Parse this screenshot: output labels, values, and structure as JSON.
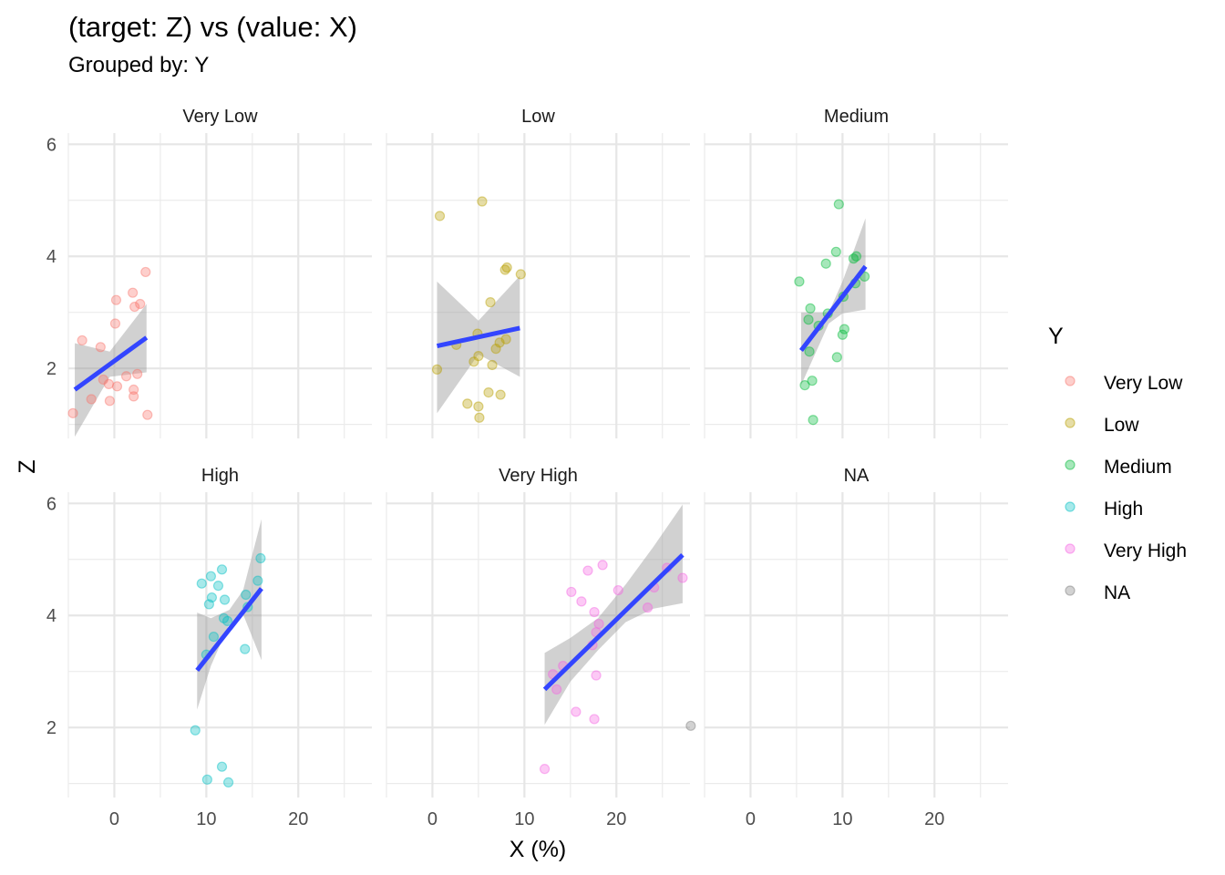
{
  "title": "(target: Z) vs (value: X)",
  "subtitle": "Grouped by: Y",
  "chart_data": {
    "type": "scatter",
    "xlabel": "X (%)",
    "ylabel": "Z",
    "xlim": [
      -5,
      28
    ],
    "ylim": [
      0.75,
      6.2
    ],
    "xticks": [
      0,
      10,
      20
    ],
    "yticks": [
      2,
      4,
      6
    ],
    "grid": true,
    "legend": {
      "title": "Y",
      "position": "right",
      "entries": [
        "Very Low",
        "Low",
        "Medium",
        "High",
        "Very High",
        "NA"
      ]
    },
    "colors": {
      "Very Low": "#F8766D",
      "Low": "#B79F00",
      "Medium": "#00BA38",
      "High": "#00BFC4",
      "Very High": "#F564E3",
      "NA": "#7F7F7F"
    },
    "panels": [
      {
        "name": "Very Low",
        "points": [
          [
            -4.5,
            1.2
          ],
          [
            -3.5,
            2.5
          ],
          [
            -2.5,
            1.45
          ],
          [
            -1.5,
            2.38
          ],
          [
            -1.2,
            1.8
          ],
          [
            -0.6,
            1.72
          ],
          [
            -0.5,
            1.42
          ],
          [
            0.1,
            2.8
          ],
          [
            0.2,
            3.22
          ],
          [
            0.3,
            1.68
          ],
          [
            1.3,
            1.86
          ],
          [
            2,
            3.35
          ],
          [
            2.1,
            1.62
          ],
          [
            2.1,
            1.5
          ],
          [
            2.2,
            3.1
          ],
          [
            2.5,
            1.9
          ],
          [
            2.8,
            3.15
          ],
          [
            3.4,
            3.72
          ],
          [
            3.6,
            1.17
          ]
        ],
        "fit": {
          "x": [
            -4.3,
            3.5
          ],
          "y": [
            1.62,
            2.55
          ]
        },
        "band": {
          "x": [
            -4.3,
            -0.5,
            3.5
          ],
          "lower": [
            0.78,
            1.85,
            1.93
          ],
          "upper": [
            2.45,
            2.3,
            3.15
          ]
        }
      },
      {
        "name": "Low",
        "points": [
          [
            0.5,
            1.98
          ],
          [
            0.8,
            4.72
          ],
          [
            2.6,
            2.42
          ],
          [
            3.8,
            1.37
          ],
          [
            4.5,
            2.12
          ],
          [
            4.9,
            2.62
          ],
          [
            5,
            2.22
          ],
          [
            5,
            1.32
          ],
          [
            5.1,
            1.12
          ],
          [
            5.4,
            4.98
          ],
          [
            6.1,
            1.57
          ],
          [
            6.3,
            3.18
          ],
          [
            6.5,
            2.06
          ],
          [
            6.9,
            2.35
          ],
          [
            7.3,
            2.46
          ],
          [
            7.4,
            1.53
          ],
          [
            7.9,
            3.76
          ],
          [
            8,
            2.52
          ],
          [
            8.1,
            3.8
          ],
          [
            9.6,
            3.68
          ]
        ],
        "fit": {
          "x": [
            0.5,
            9.5
          ],
          "y": [
            2.4,
            2.72
          ]
        },
        "band": {
          "x": [
            0.5,
            5,
            9.5
          ],
          "lower": [
            1.2,
            2.25,
            1.85
          ],
          "upper": [
            3.55,
            2.85,
            3.65
          ]
        }
      },
      {
        "name": "Medium",
        "points": [
          [
            5.3,
            3.55
          ],
          [
            5.9,
            1.7
          ],
          [
            6.3,
            2.87
          ],
          [
            6.4,
            2.3
          ],
          [
            6.5,
            3.07
          ],
          [
            6.7,
            1.78
          ],
          [
            6.8,
            1.08
          ],
          [
            7.4,
            2.76
          ],
          [
            8.2,
            3.87
          ],
          [
            8.4,
            2.98
          ],
          [
            9.3,
            4.08
          ],
          [
            9.4,
            2.2
          ],
          [
            9.6,
            4.93
          ],
          [
            10,
            2.6
          ],
          [
            10.2,
            2.7
          ],
          [
            10.1,
            3.28
          ],
          [
            11.2,
            3.96
          ],
          [
            11.4,
            3.52
          ],
          [
            11.5,
            4.0
          ],
          [
            12.4,
            3.64
          ]
        ],
        "fit": {
          "x": [
            5.5,
            12.5
          ],
          "y": [
            2.32,
            3.82
          ]
        },
        "band": {
          "x": [
            5.5,
            8.5,
            10,
            12.5
          ],
          "lower": [
            1.7,
            2.8,
            2.98,
            3.05
          ],
          "upper": [
            3.0,
            3.0,
            3.55,
            4.68
          ]
        }
      },
      {
        "name": "High",
        "points": [
          [
            8.8,
            1.95
          ],
          [
            9.5,
            4.57
          ],
          [
            10,
            3.3
          ],
          [
            10.1,
            1.07
          ],
          [
            10.3,
            4.2
          ],
          [
            10.5,
            4.7
          ],
          [
            10.6,
            4.32
          ],
          [
            10.8,
            3.62
          ],
          [
            11.3,
            4.53
          ],
          [
            11.7,
            4.82
          ],
          [
            11.7,
            1.3
          ],
          [
            11.9,
            3.95
          ],
          [
            12,
            4.28
          ],
          [
            12.3,
            3.9
          ],
          [
            12.4,
            1.02
          ],
          [
            14.2,
            3.4
          ],
          [
            14.3,
            4.37
          ],
          [
            14.5,
            4.15
          ],
          [
            15.6,
            4.62
          ],
          [
            15.9,
            5.02
          ]
        ],
        "fit": {
          "x": [
            9,
            16
          ],
          "y": [
            3.02,
            4.48
          ]
        },
        "band": {
          "x": [
            9,
            10.5,
            12.5,
            14,
            16
          ],
          "lower": [
            2.32,
            3.1,
            3.85,
            4.02,
            3.2
          ],
          "upper": [
            4.05,
            3.95,
            4.1,
            4.45,
            5.72
          ]
        }
      },
      {
        "name": "Very High",
        "points": [
          [
            12.2,
            1.26
          ],
          [
            13.1,
            2.95
          ],
          [
            13.5,
            2.68
          ],
          [
            14.2,
            3.1
          ],
          [
            15.1,
            4.42
          ],
          [
            15.6,
            2.28
          ],
          [
            16.2,
            4.25
          ],
          [
            16.9,
            4.8
          ],
          [
            17.4,
            3.47
          ],
          [
            17.6,
            2.15
          ],
          [
            17.6,
            4.06
          ],
          [
            17.8,
            2.93
          ],
          [
            17.8,
            3.7
          ],
          [
            18.1,
            3.85
          ],
          [
            18.5,
            4.9
          ],
          [
            20.2,
            4.45
          ],
          [
            23.4,
            4.14
          ],
          [
            24.1,
            4.5
          ],
          [
            25.5,
            4.85
          ],
          [
            27.2,
            4.67
          ]
        ],
        "fit": {
          "x": [
            12.2,
            27.2
          ],
          "y": [
            2.68,
            5.08
          ]
        },
        "band": {
          "x": [
            12.2,
            15,
            18,
            21,
            24,
            27.2
          ],
          "lower": [
            2.05,
            2.82,
            3.38,
            3.88,
            4.12,
            4.22
          ],
          "upper": [
            3.33,
            3.6,
            3.95,
            4.55,
            5.22,
            5.98
          ]
        }
      },
      {
        "name": "NA",
        "points": [
          [
            -6.5,
            2.03
          ]
        ],
        "fit": null,
        "band": null
      }
    ]
  }
}
